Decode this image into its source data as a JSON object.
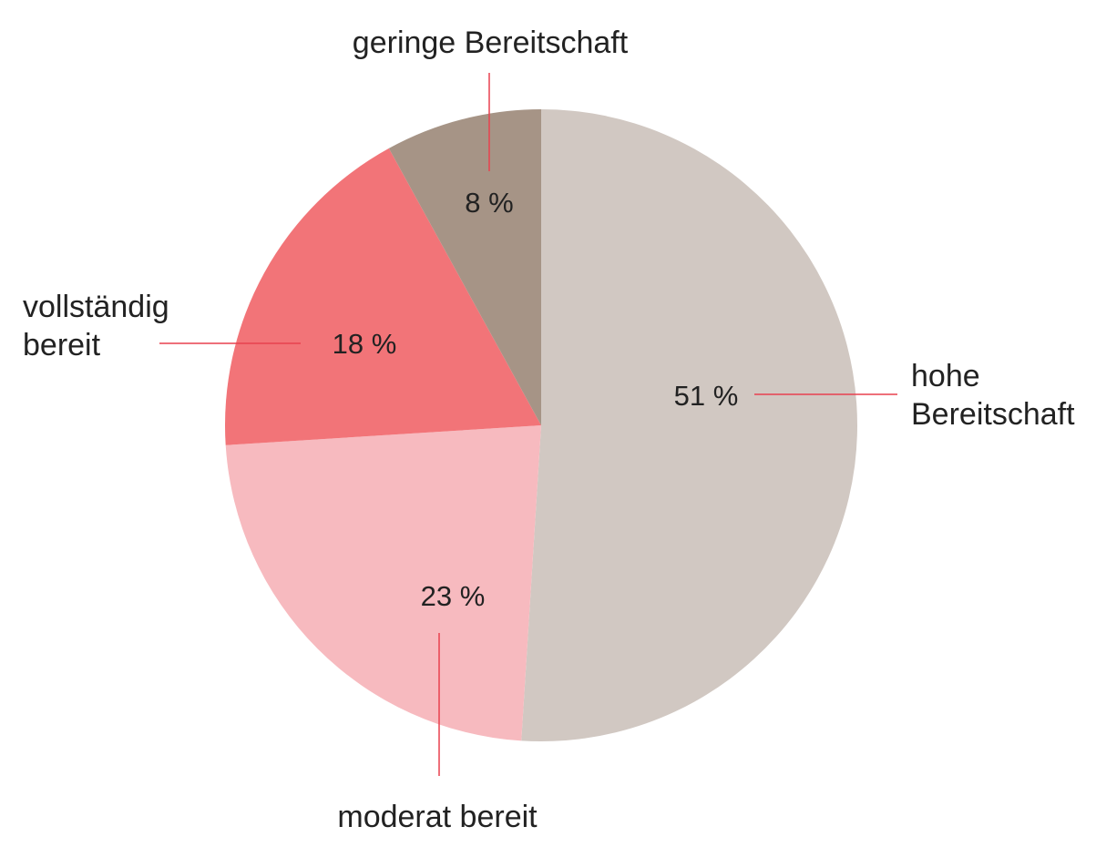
{
  "chart_data": {
    "type": "pie",
    "categories": [
      "hohe Bereitschaft",
      "moderat bereit",
      "vollständig bereit",
      "geringe Bereitschaft"
    ],
    "values": [
      51,
      23,
      18,
      8
    ],
    "value_labels": [
      "51 %",
      "23 %",
      "18 %",
      "8 %"
    ],
    "colors": [
      "#d1c8c2",
      "#f7babf",
      "#f27478",
      "#a69486"
    ],
    "leader_color": "#e8414f"
  }
}
